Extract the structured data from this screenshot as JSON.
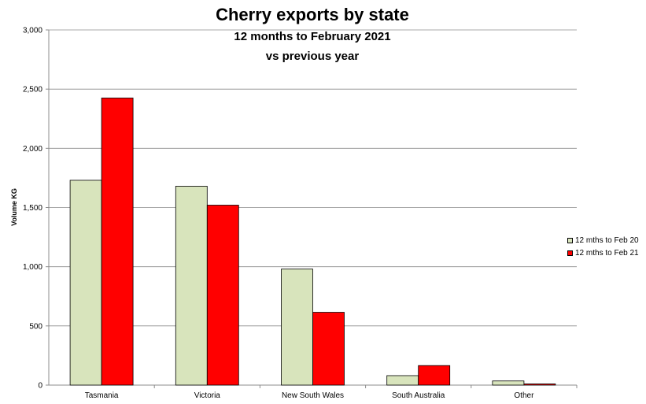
{
  "chart_data": {
    "type": "bar",
    "title": "Cherry exports by state",
    "subtitle_lines": [
      "12 months to February 2021",
      "vs previous year"
    ],
    "xlabel": "",
    "ylabel": "Volume KG",
    "categories": [
      "Tasmania",
      "Victoria",
      "New South Wales",
      "South Australia",
      "Other"
    ],
    "series": [
      {
        "name": "12 mths to Feb 20",
        "color": "#d8e4bc",
        "values": [
          1730,
          1680,
          980,
          80,
          35
        ]
      },
      {
        "name": "12 mths to Feb 21",
        "color": "#ff0000",
        "values": [
          2425,
          1520,
          615,
          165,
          10
        ]
      }
    ],
    "ylim": [
      0,
      3000
    ],
    "yticks": [
      {
        "value": 0,
        "label": "0"
      },
      {
        "value": 500,
        "label": "500"
      },
      {
        "value": 1000,
        "label": "1,000"
      },
      {
        "value": 1500,
        "label": "1,500"
      },
      {
        "value": 2000,
        "label": "2,000"
      },
      {
        "value": 2500,
        "label": "2,500"
      },
      {
        "value": 3000,
        "label": "3,000"
      }
    ],
    "grid": true,
    "legend_position": "right"
  }
}
